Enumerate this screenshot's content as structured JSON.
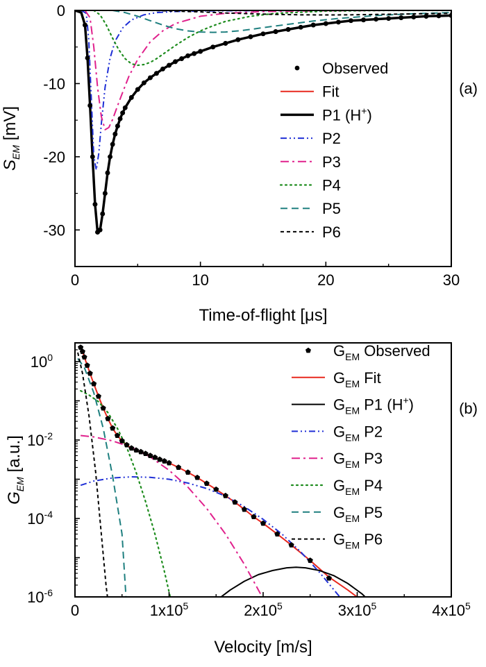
{
  "chart_data": [
    {
      "panel": "(a)",
      "type": "line",
      "xlabel": "Time-of-flight [μs]",
      "ylabel": "S_EM [mV]",
      "ylabel_main": "S",
      "ylabel_sub": "EM",
      "ylabel_unit": " [mV]",
      "xlim": [
        0,
        30
      ],
      "ylim": [
        -35,
        0
      ],
      "xticks": [
        0,
        10,
        20,
        30
      ],
      "yticks": [
        0,
        -10,
        -20,
        -30
      ],
      "grid": false,
      "legend_position": "right",
      "series": [
        {
          "name": "Observed",
          "style": "markers",
          "color": "#000000",
          "x": [
            0.8,
            1.0,
            1.2,
            1.4,
            1.6,
            1.8,
            2.0,
            2.2,
            2.4,
            2.6,
            2.8,
            3.0,
            3.2,
            3.4,
            3.6,
            3.8,
            4.0,
            4.5,
            5,
            5.5,
            6,
            6.5,
            7,
            7.5,
            8,
            8.5,
            9,
            9.5,
            10,
            11,
            12,
            13,
            14,
            15,
            16,
            17,
            18,
            19,
            20,
            21,
            22,
            23,
            24,
            25,
            26,
            27,
            28,
            29,
            30
          ],
          "y": [
            -2,
            -6.5,
            -13,
            -20,
            -26.5,
            -30.3,
            -30.0,
            -27.8,
            -25.0,
            -22.2,
            -20.0,
            -18.3,
            -16.9,
            -15.8,
            -14.8,
            -14.0,
            -13.3,
            -11.9,
            -10.8,
            -9.9,
            -9.2,
            -8.6,
            -8.0,
            -7.5,
            -7.0,
            -6.6,
            -6.2,
            -5.9,
            -5.6,
            -5.0,
            -4.5,
            -4.0,
            -3.6,
            -3.2,
            -2.9,
            -2.6,
            -2.3,
            -2.0,
            -1.8,
            -1.6,
            -1.4,
            -1.3,
            -1.2,
            -1.1,
            -1.0,
            -0.9,
            -0.8,
            -0.75,
            -0.7
          ]
        },
        {
          "name": "Fit",
          "style": "solid",
          "color": "#e8281e",
          "width": 2,
          "x": [
            0,
            0.5,
            0.8,
            1.0,
            1.2,
            1.4,
            1.6,
            1.8,
            2.0,
            2.2,
            2.4,
            2.6,
            2.8,
            3.0,
            3.2,
            3.4,
            3.6,
            3.8,
            4.0,
            4.5,
            5,
            5.5,
            6,
            6.5,
            7,
            7.5,
            8,
            8.5,
            9,
            9.5,
            10,
            11,
            12,
            13,
            14,
            15,
            16,
            17,
            18,
            19,
            20,
            21,
            22,
            23,
            24,
            25,
            26,
            27,
            28,
            29,
            30
          ],
          "y": [
            0,
            -0.3,
            -2,
            -6.5,
            -13,
            -20,
            -26.5,
            -30.3,
            -30.0,
            -27.8,
            -25.0,
            -22.2,
            -20.0,
            -18.3,
            -16.9,
            -15.8,
            -14.8,
            -14.0,
            -13.3,
            -11.9,
            -10.8,
            -9.9,
            -9.2,
            -8.6,
            -8.0,
            -7.5,
            -7.0,
            -6.6,
            -6.2,
            -5.9,
            -5.6,
            -5.0,
            -4.5,
            -4.0,
            -3.6,
            -3.2,
            -2.9,
            -2.6,
            -2.3,
            -2.0,
            -1.8,
            -1.6,
            -1.4,
            -1.3,
            -1.2,
            -1.1,
            -1.0,
            -0.9,
            -0.8,
            -0.75,
            -0.7
          ]
        },
        {
          "name": "P1 (H⁺)",
          "label_main": "P1 (H",
          "label_sup": "+",
          "label_end": ")",
          "style": "solid",
          "color": "#000000",
          "width": 3.5,
          "x": [
            0,
            0.5,
            0.8,
            1.0,
            1.2,
            1.4,
            1.6,
            1.8,
            2.0,
            2.2,
            2.4,
            2.6,
            2.8,
            3.0,
            3.2,
            3.4,
            3.6,
            3.8,
            4.0,
            4.5,
            5,
            5.5,
            6,
            6.5,
            7,
            7.5,
            8,
            8.5,
            9,
            9.5,
            10,
            11,
            12,
            13,
            14,
            15,
            16,
            17,
            18,
            19,
            20,
            21,
            22,
            23,
            24,
            25,
            26,
            27,
            28,
            29,
            30
          ],
          "y": [
            0,
            -0.3,
            -2,
            -6.5,
            -13,
            -20,
            -26.5,
            -30.3,
            -30.0,
            -27.8,
            -25.0,
            -22.2,
            -20.0,
            -18.3,
            -16.9,
            -15.8,
            -14.8,
            -14.0,
            -13.3,
            -11.9,
            -10.8,
            -9.9,
            -9.2,
            -8.6,
            -8.0,
            -7.5,
            -7.0,
            -6.6,
            -6.2,
            -5.9,
            -5.6,
            -5.0,
            -4.5,
            -4.0,
            -3.6,
            -3.2,
            -2.9,
            -2.6,
            -2.3,
            -2.0,
            -1.8,
            -1.6,
            -1.4,
            -1.3,
            -1.2,
            -1.1,
            -1.0,
            -0.9,
            -0.8,
            -0.75,
            -0.7
          ]
        },
        {
          "name": "P2",
          "style": "dashdotdot",
          "color": "#1f2fd6",
          "width": 2,
          "x": [
            0.5,
            0.9,
            1.1,
            1.3,
            1.5,
            1.7,
            1.9,
            2.1,
            2.4,
            2.8,
            3.2,
            3.8,
            4.5,
            5.5,
            6.5,
            8,
            10,
            13,
            16,
            20,
            25,
            30
          ],
          "y": [
            0,
            -0.4,
            -4,
            -12,
            -20,
            -21.8,
            -19.5,
            -15.5,
            -10.5,
            -6.5,
            -4.2,
            -2.4,
            -1.3,
            -0.6,
            -0.3,
            -0.15,
            -0.08,
            -0.04,
            -0.02,
            -0.01,
            0,
            0
          ]
        },
        {
          "name": "P3",
          "style": "dashdot",
          "color": "#e0208c",
          "width": 2,
          "x": [
            0.8,
            1.2,
            1.5,
            1.8,
            2.1,
            2.4,
            2.7,
            3.0,
            3.4,
            3.8,
            4.3,
            5,
            6,
            7,
            8,
            10,
            12,
            15,
            20,
            25,
            30
          ],
          "y": [
            0,
            -1,
            -5,
            -10.5,
            -14.5,
            -16.3,
            -16.0,
            -14.9,
            -13.0,
            -11.2,
            -9.0,
            -6.7,
            -4.3,
            -2.8,
            -1.8,
            -0.8,
            -0.4,
            -0.15,
            -0.05,
            0,
            0
          ]
        },
        {
          "name": "P4",
          "style": "dotted",
          "color": "#1e8c1e",
          "width": 2.2,
          "x": [
            1.5,
            2,
            2.5,
            3,
            3.5,
            4,
            4.5,
            5,
            5.5,
            6,
            6.5,
            7,
            8,
            9,
            10,
            11,
            12,
            14,
            16,
            20,
            25,
            30
          ],
          "y": [
            0,
            -0.6,
            -2,
            -3.8,
            -5.4,
            -6.6,
            -7.3,
            -7.5,
            -7.4,
            -7.1,
            -6.6,
            -6.0,
            -4.8,
            -3.7,
            -2.8,
            -2.1,
            -1.5,
            -0.8,
            -0.4,
            -0.1,
            0,
            0
          ]
        },
        {
          "name": "P5",
          "style": "dashed",
          "color": "#1e7f7f",
          "width": 2,
          "x": [
            3,
            4,
            5,
            6,
            7,
            8,
            9,
            10,
            11,
            12,
            13,
            14,
            15,
            17,
            19,
            21,
            24,
            27,
            30
          ],
          "y": [
            0,
            -0.3,
            -0.8,
            -1.4,
            -2.0,
            -2.5,
            -2.8,
            -2.95,
            -3.0,
            -2.95,
            -2.8,
            -2.6,
            -2.35,
            -1.9,
            -1.45,
            -1.1,
            -0.7,
            -0.45,
            -0.3
          ]
        },
        {
          "name": "P6",
          "style": "shortdash",
          "color": "#000000",
          "width": 2,
          "x": [
            6,
            8,
            10,
            12,
            14,
            16,
            18,
            20,
            22,
            24,
            26,
            28,
            30
          ],
          "y": [
            0,
            -0.1,
            -0.2,
            -0.35,
            -0.45,
            -0.55,
            -0.6,
            -0.62,
            -0.6,
            -0.55,
            -0.5,
            -0.45,
            -0.4
          ]
        }
      ]
    },
    {
      "panel": "(b)",
      "type": "line",
      "xlabel": "Velocity [m/s]",
      "ylabel": "G_EM [a.u.]",
      "ylabel_main": "G",
      "ylabel_sub": "EM",
      "ylabel_unit": " [a.u.]",
      "xlim": [
        0,
        400000
      ],
      "ylim": [
        1e-06,
        3
      ],
      "yscale": "log",
      "xticks": [
        0,
        100000,
        200000,
        300000,
        400000
      ],
      "xtick_labels": [
        {
          "main": "0",
          "sup": ""
        },
        {
          "main": "1x10",
          "sup": "5"
        },
        {
          "main": "2x10",
          "sup": "5"
        },
        {
          "main": "3x10",
          "sup": "5"
        },
        {
          "main": "4x10",
          "sup": "5"
        }
      ],
      "yticks": [
        1,
        0.01,
        0.0001,
        1e-06
      ],
      "ytick_labels": [
        {
          "main": "10",
          "sup": "0"
        },
        {
          "main": "10",
          "sup": "-2"
        },
        {
          "main": "10",
          "sup": "-4"
        },
        {
          "main": "10",
          "sup": "-6"
        }
      ],
      "grid": false,
      "legend_position": "right",
      "legend_prefix_main": "G",
      "legend_prefix_sub": "EM",
      "series": [
        {
          "name": "G_EM Observed",
          "label": "Observed",
          "style": "markers",
          "color": "#000000",
          "x": [
            6000,
            8000,
            10000,
            13000,
            16000,
            20000,
            25000,
            30000,
            35000,
            40000,
            45000,
            50000,
            55000,
            60000,
            65000,
            70000,
            75000,
            80000,
            85000,
            90000,
            95000,
            100000,
            110000,
            120000,
            130000,
            140000,
            150000,
            160000,
            170000,
            180000,
            190000,
            200000,
            215000,
            230000,
            250000,
            270000,
            305000
          ],
          "y": [
            2.3,
            1.8,
            1.3,
            0.8,
            0.5,
            0.27,
            0.13,
            0.065,
            0.035,
            0.02,
            0.013,
            0.0095,
            0.0075,
            0.0062,
            0.0055,
            0.005,
            0.0045,
            0.004,
            0.0036,
            0.0032,
            0.0029,
            0.0026,
            0.002,
            0.0015,
            0.0011,
            0.00078,
            0.00055,
            0.00038,
            0.00026,
            0.00017,
            0.00011,
            7.5e-05,
            4e-05,
            2.1e-05,
            8.5e-06,
            3e-06,
            8e-07
          ]
        },
        {
          "name": "G_EM Fit",
          "label": "Fit",
          "style": "solid",
          "color": "#e8281e",
          "width": 2,
          "x": [
            6000,
            8000,
            10000,
            13000,
            16000,
            20000,
            25000,
            30000,
            35000,
            40000,
            45000,
            50000,
            55000,
            60000,
            65000,
            70000,
            75000,
            80000,
            85000,
            90000,
            95000,
            100000,
            110000,
            120000,
            130000,
            140000,
            150000,
            160000,
            170000,
            180000,
            190000,
            200000,
            215000,
            230000,
            250000,
            270000,
            290000,
            305000,
            315000
          ],
          "y": [
            2.3,
            1.8,
            1.3,
            0.8,
            0.5,
            0.27,
            0.13,
            0.065,
            0.035,
            0.02,
            0.013,
            0.0095,
            0.0075,
            0.0062,
            0.0055,
            0.005,
            0.0045,
            0.004,
            0.0036,
            0.0032,
            0.0029,
            0.0026,
            0.002,
            0.0015,
            0.0011,
            0.00078,
            0.00055,
            0.00038,
            0.00026,
            0.00017,
            0.00011,
            7.5e-05,
            4e-05,
            2.1e-05,
            8.5e-06,
            3.2e-06,
            1.5e-06,
            8e-07,
            5e-07
          ]
        },
        {
          "name": "G_EM P1 (H⁺)",
          "label": "P1 (H",
          "label_sup": "+",
          "label_end": ")",
          "style": "solid",
          "color": "#000000",
          "width": 2,
          "x": [
            150000,
            165000,
            180000,
            195000,
            210000,
            225000,
            235000,
            245000,
            260000,
            275000,
            290000,
            305000,
            318000
          ],
          "y": [
            8e-07,
            1.5e-06,
            2.5e-06,
            3.7e-06,
            4.7e-06,
            5.5e-06,
            5.7e-06,
            5.5e-06,
            4.7e-06,
            3.5e-06,
            2.2e-06,
            1.2e-06,
            6e-07
          ]
        },
        {
          "name": "G_EM P2",
          "label": "P2",
          "style": "dashdotdot",
          "color": "#1f2fd6",
          "width": 2,
          "x": [
            6000,
            20000,
            40000,
            60000,
            80000,
            100000,
            120000,
            140000,
            160000,
            180000,
            200000,
            220000,
            240000,
            260000,
            280000,
            295000
          ],
          "y": [
            0.0007,
            0.0009,
            0.00108,
            0.00115,
            0.00112,
            0.001,
            0.0008,
            0.00058,
            0.00037,
            0.0002,
            9.5e-05,
            4e-05,
            1.4e-05,
            4.2e-06,
            1.1e-06,
            5e-07
          ]
        },
        {
          "name": "G_EM P3",
          "label": "P3",
          "style": "dashdot",
          "color": "#e0208c",
          "width": 2,
          "x": [
            6000,
            20000,
            40000,
            60000,
            80000,
            100000,
            120000,
            140000,
            160000,
            180000,
            200000,
            215000
          ],
          "y": [
            0.013,
            0.012,
            0.0095,
            0.0065,
            0.0037,
            0.0017,
            0.00063,
            0.00018,
            4e-05,
            6.8e-06,
            9e-07,
            2e-07
          ]
        },
        {
          "name": "G_EM P4",
          "label": "P4",
          "style": "dotted",
          "color": "#1e8c1e",
          "width": 2.2,
          "x": [
            6000,
            15000,
            25000,
            35000,
            45000,
            55000,
            65000,
            75000,
            85000,
            95000,
            105000
          ],
          "y": [
            0.18,
            0.14,
            0.095,
            0.05,
            0.02,
            0.0065,
            0.0015,
            0.00027,
            4e-05,
            4.5e-06,
            4e-07
          ]
        },
        {
          "name": "G_EM P5",
          "label": "P5",
          "style": "dashed",
          "color": "#1e7f7f",
          "width": 2,
          "x": [
            3000,
            10000,
            20000,
            30000,
            40000,
            50000,
            55000
          ],
          "y": [
            1.2,
            0.7,
            0.16,
            0.02,
            0.0012,
            4e-05,
            5e-07
          ]
        },
        {
          "name": "G_EM P6",
          "label": "P6",
          "style": "shortdash",
          "color": "#000000",
          "width": 2,
          "x": [
            3000,
            8000,
            15000,
            22000,
            28000,
            33000,
            36000
          ],
          "y": [
            1.7,
            0.5,
            0.04,
            0.0015,
            4e-05,
            2e-06,
            5e-07
          ]
        }
      ]
    }
  ]
}
